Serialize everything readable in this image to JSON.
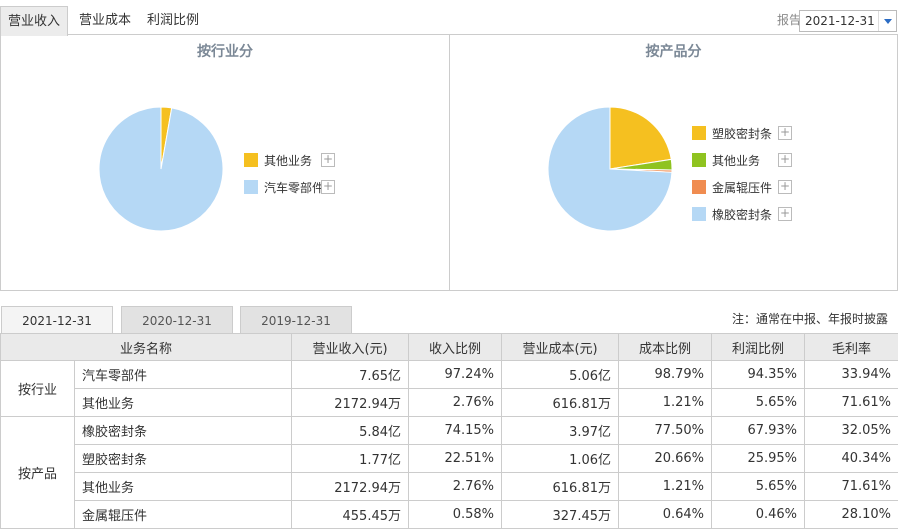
{
  "top_tabs": [
    "营业收入",
    "营业成本",
    "利润比例"
  ],
  "period": {
    "label": "报告期",
    "value": "2021-12-31"
  },
  "chart_data": [
    {
      "type": "pie",
      "title": "按行业分",
      "slices": [
        {
          "label": "其他业务",
          "value": 2.76,
          "color": "#f5c020"
        },
        {
          "label": "汽车零部件",
          "value": 97.24,
          "color": "#b5d8f5"
        }
      ]
    },
    {
      "type": "pie",
      "title": "按产品分",
      "slices": [
        {
          "label": "塑胶密封条",
          "value": 22.51,
          "color": "#f5c020"
        },
        {
          "label": "其他业务",
          "value": 2.76,
          "color": "#8fc320"
        },
        {
          "label": "金属辊压件",
          "value": 0.58,
          "color": "#f08c50"
        },
        {
          "label": "橡胶密封条",
          "value": 74.15,
          "color": "#b5d8f5"
        }
      ]
    }
  ],
  "plus_symbol": "+",
  "year_tabs": [
    "2021-12-31",
    "2020-12-31",
    "2019-12-31"
  ],
  "note": "注：通常在中报、年报时披露",
  "table": {
    "headers": [
      "业务名称",
      "营业收入(元)",
      "收入比例",
      "营业成本(元)",
      "成本比例",
      "利润比例",
      "毛利率"
    ],
    "groups": [
      {
        "category": "按行业",
        "rows": [
          [
            "汽车零部件",
            "7.65亿",
            "97.24%",
            "5.06亿",
            "98.79%",
            "94.35%",
            "33.94%"
          ],
          [
            "其他业务",
            "2172.94万",
            "2.76%",
            "616.81万",
            "1.21%",
            "5.65%",
            "71.61%"
          ]
        ]
      },
      {
        "category": "按产品",
        "rows": [
          [
            "橡胶密封条",
            "5.84亿",
            "74.15%",
            "3.97亿",
            "77.50%",
            "67.93%",
            "32.05%"
          ],
          [
            "塑胶密封条",
            "1.77亿",
            "22.51%",
            "1.06亿",
            "20.66%",
            "25.95%",
            "40.34%"
          ],
          [
            "其他业务",
            "2172.94万",
            "2.76%",
            "616.81万",
            "1.21%",
            "5.65%",
            "71.61%"
          ],
          [
            "金属辊压件",
            "455.45万",
            "0.58%",
            "327.45万",
            "0.64%",
            "0.46%",
            "28.10%"
          ]
        ]
      }
    ]
  }
}
